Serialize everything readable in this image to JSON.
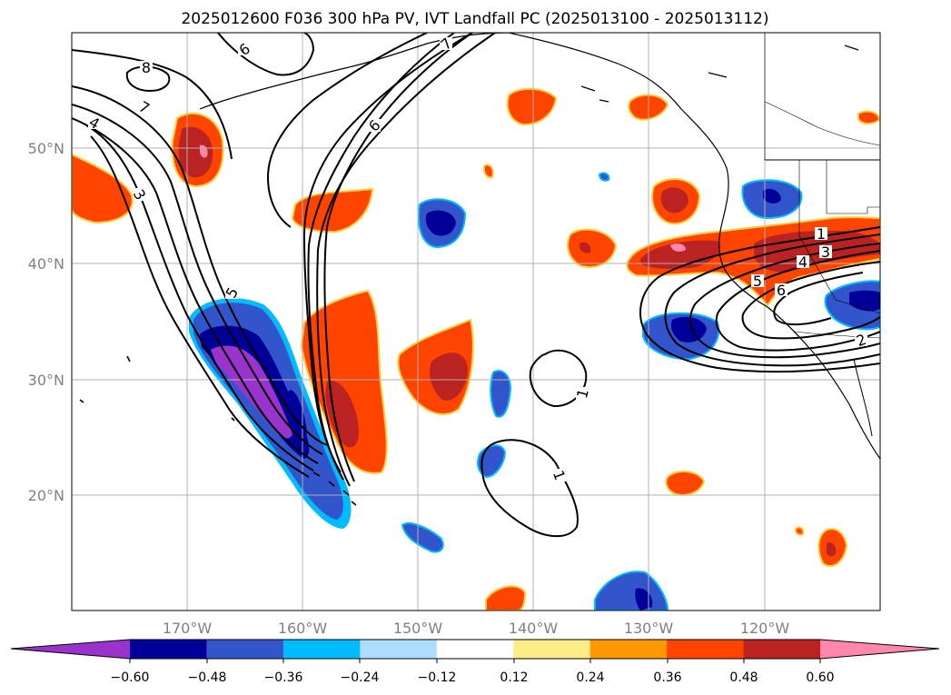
{
  "title": "2025012600 F036 300 hPa PV, IVT Landfall PC (2025013100 - 2025013112)",
  "map": {
    "lon_ticks": [
      "170°W",
      "160°W",
      "150°W",
      "140°W",
      "130°W",
      "120°W"
    ],
    "lat_ticks": [
      "50°N",
      "40°N",
      "30°N",
      "20°N"
    ],
    "grid": true
  },
  "colorbar": {
    "tick_labels": [
      "−0.60",
      "−0.48",
      "−0.36",
      "−0.24",
      "−0.12",
      "0.12",
      "0.24",
      "0.36",
      "0.48",
      "0.60"
    ],
    "colors": [
      "#9933cc",
      "#000099",
      "#3355cc",
      "#00bbff",
      "#aaddff",
      "#ffffff",
      "#ffee88",
      "#ff9900",
      "#ff4400",
      "#bb2222",
      "#ff88aa"
    ]
  },
  "contour_labels": [
    "8",
    "6",
    "7",
    "7",
    "6",
    "4",
    "3",
    "5",
    "1",
    "1",
    "1",
    "3",
    "4",
    "5",
    "6",
    "2"
  ]
}
